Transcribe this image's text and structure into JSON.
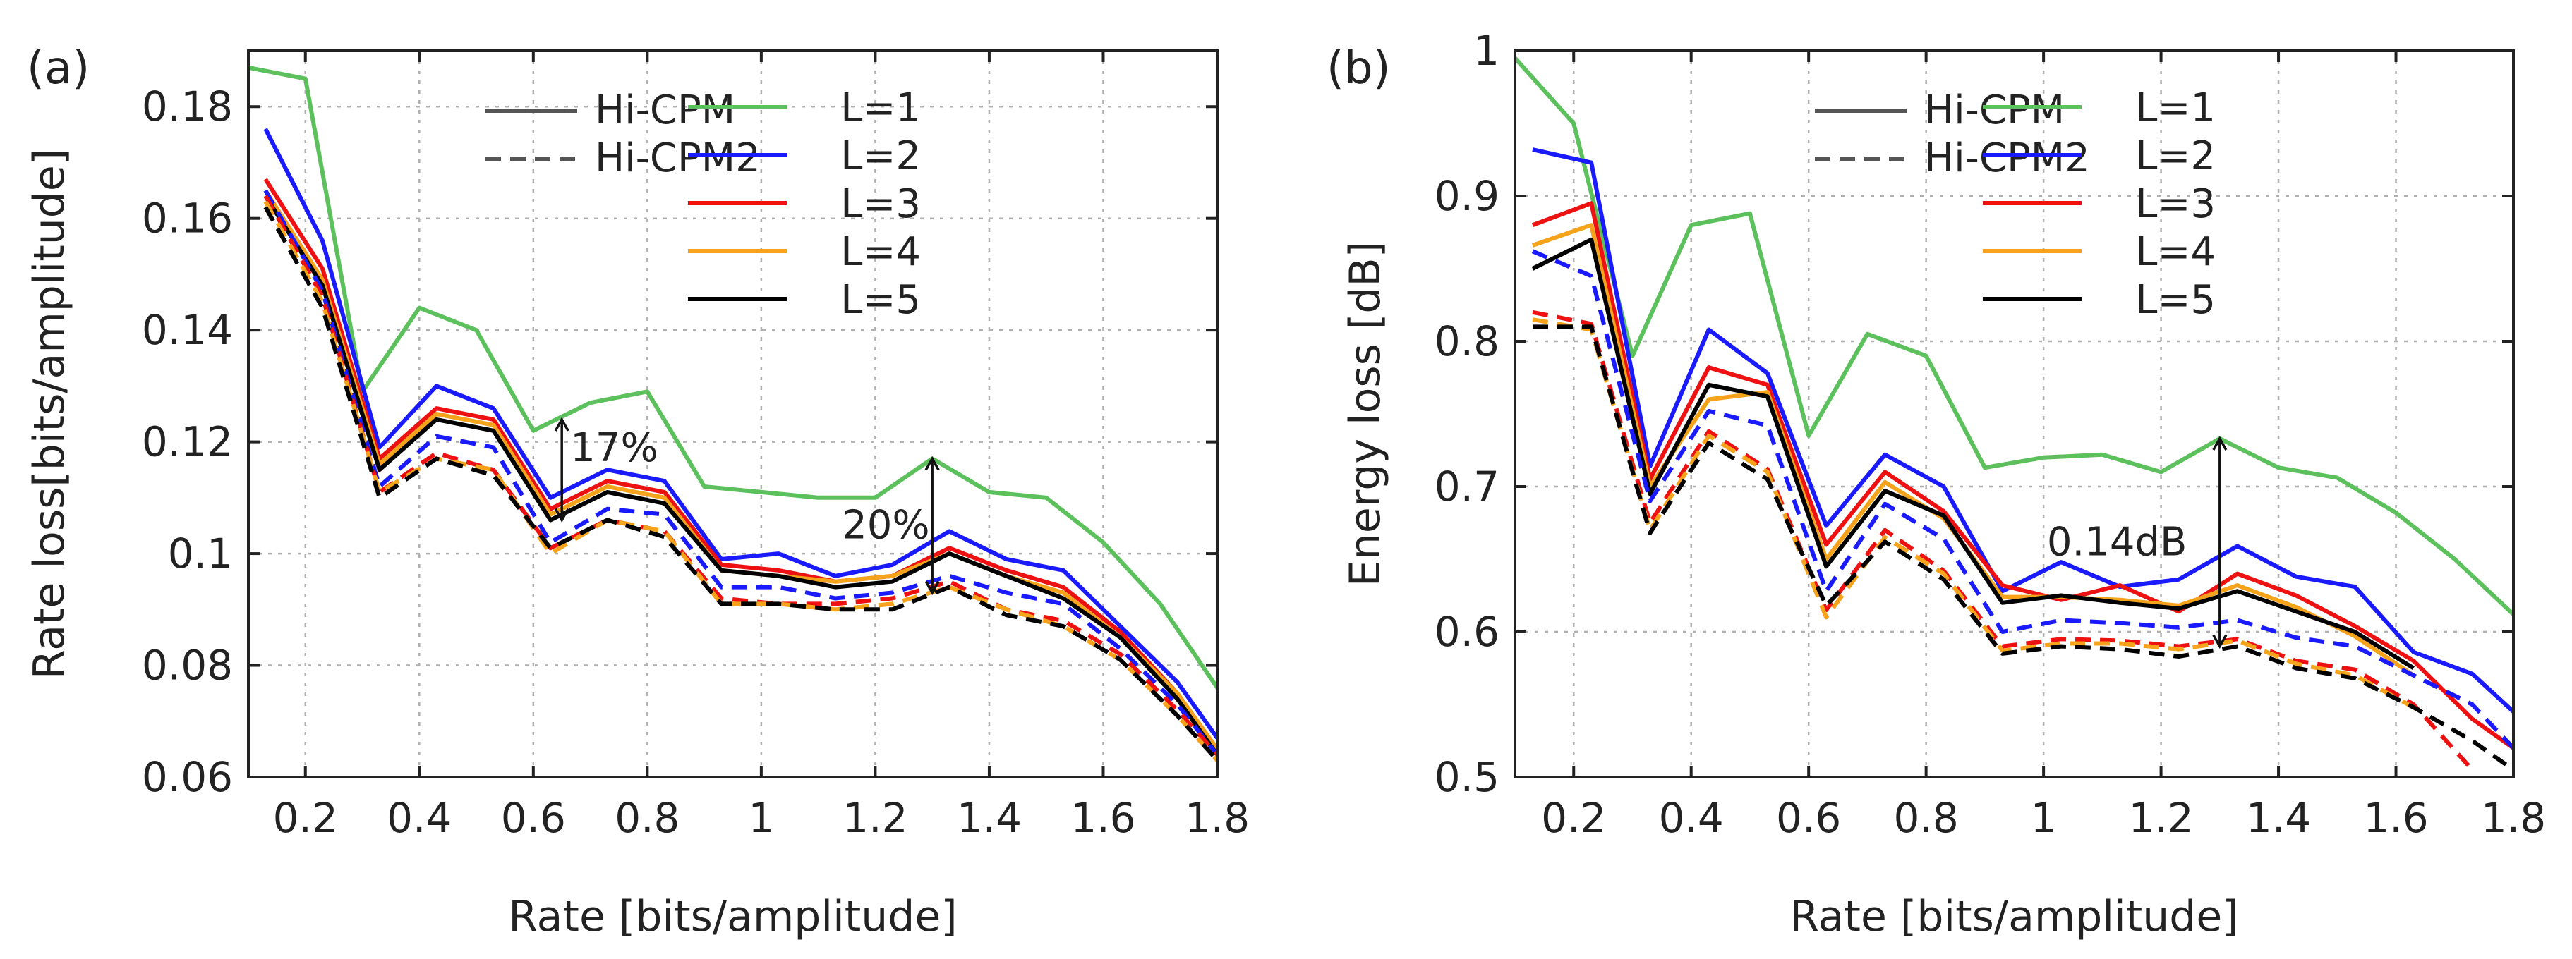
{
  "chart_data": [
    {
      "type": "line",
      "panel_label": "(a)",
      "title": "",
      "xlabel": "Rate [bits/amplitude]",
      "ylabel": "Rate loss[bits/amplitude]",
      "xlim": [
        0.1,
        1.8
      ],
      "ylim": [
        0.06,
        0.19
      ],
      "xticks": [
        0.2,
        0.4,
        0.6,
        0.8,
        1.0,
        1.2,
        1.4,
        1.6,
        1.8
      ],
      "xtick_labels": [
        "0.2",
        "0.4",
        "0.6",
        "0.8",
        "1",
        "1.2",
        "1.4",
        "1.6",
        "1.8"
      ],
      "yticks": [
        0.06,
        0.08,
        0.1,
        0.12,
        0.14,
        0.16,
        0.18
      ],
      "ytick_labels": [
        "0.06",
        "0.08",
        "0.1",
        "0.12",
        "0.14",
        "0.16",
        "0.18"
      ],
      "grid": true,
      "legend_styles": {
        "position": "top-center",
        "entries": [
          {
            "label": "Hi-CPM",
            "dash": "solid"
          },
          {
            "label": "Hi-CPM2",
            "dash": "dashed"
          }
        ]
      },
      "legend_L": {
        "position": "top-right",
        "entries": [
          "L=1",
          "L=2",
          "L=3",
          "L=4",
          "L=5"
        ]
      },
      "annotations": [
        {
          "text": "17%",
          "x": 0.65,
          "y_from": 0.106,
          "y_to": 0.124
        },
        {
          "text": "20%",
          "x": 1.3,
          "y_from": 0.093,
          "y_to": 0.117
        }
      ],
      "series": [
        {
          "name": "L=1",
          "style": "solid",
          "color": "#5cc05c",
          "x": [
            0.1,
            0.2,
            0.3,
            0.4,
            0.5,
            0.6,
            0.7,
            0.8,
            0.9,
            1.0,
            1.1,
            1.2,
            1.3,
            1.4,
            1.5,
            1.6,
            1.7,
            1.8
          ],
          "y": [
            0.187,
            0.185,
            0.129,
            0.144,
            0.14,
            0.122,
            0.127,
            0.129,
            0.112,
            0.111,
            0.11,
            0.11,
            0.117,
            0.111,
            0.11,
            0.102,
            0.091,
            0.076
          ]
        },
        {
          "name": "L=2",
          "style": "solid",
          "color": "#1a1aff",
          "x": [
            0.13,
            0.23,
            0.33,
            0.43,
            0.53,
            0.63,
            0.73,
            0.83,
            0.93,
            1.03,
            1.13,
            1.23,
            1.33,
            1.43,
            1.53,
            1.63,
            1.73,
            1.8
          ],
          "y": [
            0.176,
            0.156,
            0.119,
            0.13,
            0.126,
            0.11,
            0.115,
            0.113,
            0.099,
            0.1,
            0.096,
            0.098,
            0.104,
            0.099,
            0.097,
            0.087,
            0.077,
            0.067
          ]
        },
        {
          "name": "L=3",
          "style": "solid",
          "color": "#ee1111",
          "x": [
            0.13,
            0.23,
            0.33,
            0.43,
            0.53,
            0.63,
            0.73,
            0.83,
            0.93,
            1.03,
            1.13,
            1.23,
            1.33,
            1.43,
            1.53,
            1.63,
            1.73,
            1.8
          ],
          "y": [
            0.167,
            0.151,
            0.117,
            0.126,
            0.124,
            0.108,
            0.113,
            0.111,
            0.098,
            0.097,
            0.095,
            0.096,
            0.101,
            0.097,
            0.094,
            0.086,
            0.075,
            0.065
          ]
        },
        {
          "name": "L=4",
          "style": "solid",
          "color": "#f5a31a",
          "x": [
            0.13,
            0.23,
            0.33,
            0.43,
            0.53,
            0.63,
            0.73,
            0.83,
            0.93,
            1.03,
            1.13,
            1.23,
            1.33,
            1.43,
            1.53,
            1.63,
            1.73,
            1.8
          ],
          "y": [
            0.165,
            0.149,
            0.116,
            0.125,
            0.123,
            0.107,
            0.112,
            0.11,
            0.097,
            0.096,
            0.095,
            0.096,
            0.1,
            0.096,
            0.093,
            0.085,
            0.075,
            0.065
          ]
        },
        {
          "name": "L=5",
          "style": "solid",
          "color": "#000000",
          "x": [
            0.13,
            0.23,
            0.33,
            0.43,
            0.53,
            0.63,
            0.73,
            0.83,
            0.93,
            1.03,
            1.13,
            1.23,
            1.33,
            1.43,
            1.53,
            1.63,
            1.73,
            1.8
          ],
          "y": [
            0.164,
            0.148,
            0.115,
            0.124,
            0.122,
            0.106,
            0.111,
            0.109,
            0.097,
            0.096,
            0.094,
            0.095,
            0.1,
            0.096,
            0.092,
            0.085,
            0.074,
            0.064
          ]
        },
        {
          "name": "L=2 Hi-CPM2",
          "style": "dashed",
          "color": "#1a1aff",
          "x": [
            0.13,
            0.23,
            0.33,
            0.43,
            0.53,
            0.63,
            0.73,
            0.83,
            0.93,
            1.03,
            1.13,
            1.23,
            1.33,
            1.43,
            1.53,
            1.63,
            1.73,
            1.8
          ],
          "y": [
            0.165,
            0.147,
            0.112,
            0.121,
            0.119,
            0.102,
            0.108,
            0.107,
            0.094,
            0.094,
            0.092,
            0.093,
            0.096,
            0.093,
            0.091,
            0.083,
            0.073,
            0.064
          ]
        },
        {
          "name": "L=3 Hi-CPM2",
          "style": "dashed",
          "color": "#ee1111",
          "x": [
            0.13,
            0.23,
            0.33,
            0.43,
            0.53,
            0.63,
            0.73,
            0.83,
            0.93,
            1.03,
            1.13,
            1.23,
            1.33,
            1.43,
            1.53,
            1.63,
            1.73,
            1.8
          ],
          "y": [
            0.164,
            0.146,
            0.111,
            0.118,
            0.115,
            0.101,
            0.106,
            0.104,
            0.092,
            0.091,
            0.091,
            0.092,
            0.095,
            0.09,
            0.088,
            0.082,
            0.072,
            0.064
          ]
        },
        {
          "name": "L=4 Hi-CPM2",
          "style": "dashed",
          "color": "#f5a31a",
          "x": [
            0.13,
            0.23,
            0.33,
            0.43,
            0.53,
            0.63,
            0.73,
            0.83,
            0.93,
            1.03,
            1.13,
            1.23,
            1.33,
            1.43,
            1.53,
            1.63,
            1.73,
            1.8
          ],
          "y": [
            0.163,
            0.145,
            0.111,
            0.117,
            0.115,
            0.1,
            0.106,
            0.104,
            0.091,
            0.091,
            0.09,
            0.091,
            0.094,
            0.09,
            0.087,
            0.081,
            0.071,
            0.063
          ]
        },
        {
          "name": "L=5 Hi-CPM2",
          "style": "dashed",
          "color": "#000000",
          "x": [
            0.13,
            0.23,
            0.33,
            0.43,
            0.53,
            0.63,
            0.73,
            0.83,
            0.93,
            1.03,
            1.13,
            1.23,
            1.33,
            1.43,
            1.53,
            1.63,
            1.73,
            1.8
          ],
          "y": [
            0.162,
            0.144,
            0.11,
            0.117,
            0.114,
            0.101,
            0.106,
            0.103,
            0.091,
            0.091,
            0.09,
            0.09,
            0.094,
            0.089,
            0.087,
            0.081,
            0.071,
            0.063
          ]
        }
      ]
    },
    {
      "type": "line",
      "panel_label": "(b)",
      "title": "",
      "xlabel": "Rate [bits/amplitude]",
      "ylabel": "Energy loss [dB]",
      "xlim": [
        0.1,
        1.8
      ],
      "ylim": [
        0.5,
        1.0
      ],
      "xticks": [
        0.2,
        0.4,
        0.6,
        0.8,
        1.0,
        1.2,
        1.4,
        1.6,
        1.8
      ],
      "xtick_labels": [
        "0.2",
        "0.4",
        "0.6",
        "0.8",
        "1",
        "1.2",
        "1.4",
        "1.6",
        "1.8"
      ],
      "yticks": [
        0.5,
        0.6,
        0.7,
        0.8,
        0.9,
        1.0
      ],
      "ytick_labels": [
        "0.5",
        "0.6",
        "0.7",
        "0.8",
        "0.9",
        "1"
      ],
      "grid": true,
      "legend_styles": {
        "position": "top-center",
        "entries": [
          {
            "label": "Hi-CPM",
            "dash": "solid"
          },
          {
            "label": "Hi-CPM2",
            "dash": "dashed"
          }
        ]
      },
      "legend_L": {
        "position": "top-right",
        "entries": [
          "L=1",
          "L=2",
          "L=3",
          "L=4",
          "L=5"
        ]
      },
      "annotations": [
        {
          "text": "0.14dB",
          "x": 1.3,
          "y_from": 0.59,
          "y_to": 0.733
        }
      ],
      "series": [
        {
          "name": "L=1",
          "style": "solid",
          "color": "#5cc05c",
          "x": [
            0.1,
            0.2,
            0.3,
            0.4,
            0.5,
            0.6,
            0.7,
            0.8,
            0.9,
            1.0,
            1.1,
            1.2,
            1.3,
            1.4,
            1.5,
            1.6,
            1.7,
            1.8
          ],
          "y": [
            0.995,
            0.95,
            0.79,
            0.88,
            0.888,
            0.735,
            0.805,
            0.79,
            0.713,
            0.72,
            0.722,
            0.71,
            0.733,
            0.713,
            0.706,
            0.682,
            0.65,
            0.612
          ]
        },
        {
          "name": "L=2",
          "style": "solid",
          "color": "#1a1aff",
          "x": [
            0.13,
            0.23,
            0.33,
            0.43,
            0.53,
            0.63,
            0.73,
            0.83,
            0.93,
            1.03,
            1.13,
            1.23,
            1.33,
            1.43,
            1.53,
            1.63,
            1.73,
            1.8
          ],
          "y": [
            0.932,
            0.923,
            0.714,
            0.808,
            0.778,
            0.673,
            0.722,
            0.7,
            0.628,
            0.648,
            0.631,
            0.636,
            0.659,
            0.638,
            0.631,
            0.586,
            0.571,
            0.545
          ]
        },
        {
          "name": "L=3",
          "style": "solid",
          "color": "#ee1111",
          "x": [
            0.13,
            0.23,
            0.33,
            0.43,
            0.53,
            0.63,
            0.73,
            0.83,
            0.93,
            1.03,
            1.13,
            1.23,
            1.33,
            1.43,
            1.53,
            1.63,
            1.73,
            1.8
          ],
          "y": [
            0.88,
            0.895,
            0.705,
            0.782,
            0.77,
            0.66,
            0.71,
            0.683,
            0.632,
            0.622,
            0.632,
            0.614,
            0.64,
            0.625,
            0.604,
            0.58,
            0.54,
            0.52
          ]
        },
        {
          "name": "L=4",
          "style": "solid",
          "color": "#f5a31a",
          "x": [
            0.13,
            0.23,
            0.33,
            0.43,
            0.53,
            0.63,
            0.73,
            0.83,
            0.93,
            1.03,
            1.13,
            1.23,
            1.33,
            1.43,
            1.53,
            1.63
          ],
          "y": [
            0.866,
            0.88,
            0.7,
            0.76,
            0.765,
            0.65,
            0.703,
            0.678,
            0.624,
            0.624,
            0.622,
            0.618,
            0.632,
            0.617,
            0.597,
            0.57
          ]
        },
        {
          "name": "L=5",
          "style": "solid",
          "color": "#000000",
          "x": [
            0.13,
            0.23,
            0.33,
            0.43,
            0.53,
            0.63,
            0.73,
            0.83,
            0.93,
            1.03,
            1.13,
            1.23,
            1.33,
            1.43,
            1.53,
            1.63
          ],
          "y": [
            0.85,
            0.87,
            0.695,
            0.77,
            0.762,
            0.645,
            0.697,
            0.68,
            0.62,
            0.625,
            0.62,
            0.616,
            0.628,
            0.614,
            0.6,
            0.575
          ]
        },
        {
          "name": "L=2 Hi-CPM2",
          "style": "dashed",
          "color": "#1a1aff",
          "x": [
            0.13,
            0.23,
            0.33,
            0.43,
            0.53,
            0.63,
            0.73,
            0.83,
            0.93,
            1.03,
            1.13,
            1.23,
            1.33,
            1.43,
            1.53,
            1.63,
            1.73,
            1.8
          ],
          "y": [
            0.862,
            0.845,
            0.69,
            0.752,
            0.742,
            0.628,
            0.688,
            0.664,
            0.6,
            0.608,
            0.606,
            0.603,
            0.608,
            0.596,
            0.59,
            0.57,
            0.55,
            0.52
          ]
        },
        {
          "name": "L=3 Hi-CPM2",
          "style": "dashed",
          "color": "#ee1111",
          "x": [
            0.13,
            0.23,
            0.33,
            0.43,
            0.53,
            0.63,
            0.73,
            0.83,
            0.93,
            1.03,
            1.13,
            1.23,
            1.33,
            1.43,
            1.53,
            1.63,
            1.73
          ],
          "y": [
            0.82,
            0.812,
            0.675,
            0.738,
            0.712,
            0.615,
            0.67,
            0.642,
            0.59,
            0.595,
            0.594,
            0.59,
            0.595,
            0.58,
            0.574,
            0.55,
            0.505
          ]
        },
        {
          "name": "L=4 Hi-CPM2",
          "style": "dashed",
          "color": "#f5a31a",
          "x": [
            0.13,
            0.23,
            0.33,
            0.43,
            0.53,
            0.63,
            0.73,
            0.83,
            0.93,
            1.03,
            1.13,
            1.23,
            1.33,
            1.43,
            1.53,
            1.63
          ],
          "y": [
            0.815,
            0.808,
            0.67,
            0.735,
            0.71,
            0.61,
            0.665,
            0.64,
            0.587,
            0.592,
            0.592,
            0.588,
            0.594,
            0.578,
            0.57,
            0.548
          ]
        },
        {
          "name": "L=5 Hi-CPM2",
          "style": "dashed",
          "color": "#000000",
          "x": [
            0.13,
            0.23,
            0.33,
            0.43,
            0.53,
            0.63,
            0.73,
            0.83,
            0.93,
            1.03,
            1.13,
            1.23,
            1.33,
            1.43,
            1.53,
            1.63,
            1.73,
            1.8
          ],
          "y": [
            0.81,
            0.81,
            0.668,
            0.73,
            0.705,
            0.618,
            0.662,
            0.636,
            0.585,
            0.59,
            0.588,
            0.583,
            0.59,
            0.575,
            0.568,
            0.548,
            0.525,
            0.505
          ]
        }
      ]
    }
  ]
}
